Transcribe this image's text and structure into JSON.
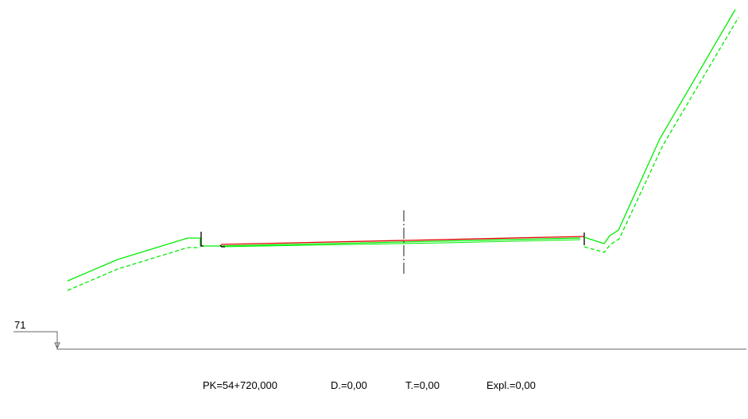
{
  "section": {
    "datum_elevation": "71",
    "pk": "PK=54+720,000",
    "d": "D.=0,00",
    "t": "T.=0,00",
    "expl": "Expl.=0,00"
  },
  "colors": {
    "terrain": "#00ee00",
    "road": "#e00000",
    "axis": "#000000",
    "datum": "#666666",
    "background": "#ffffff"
  }
}
